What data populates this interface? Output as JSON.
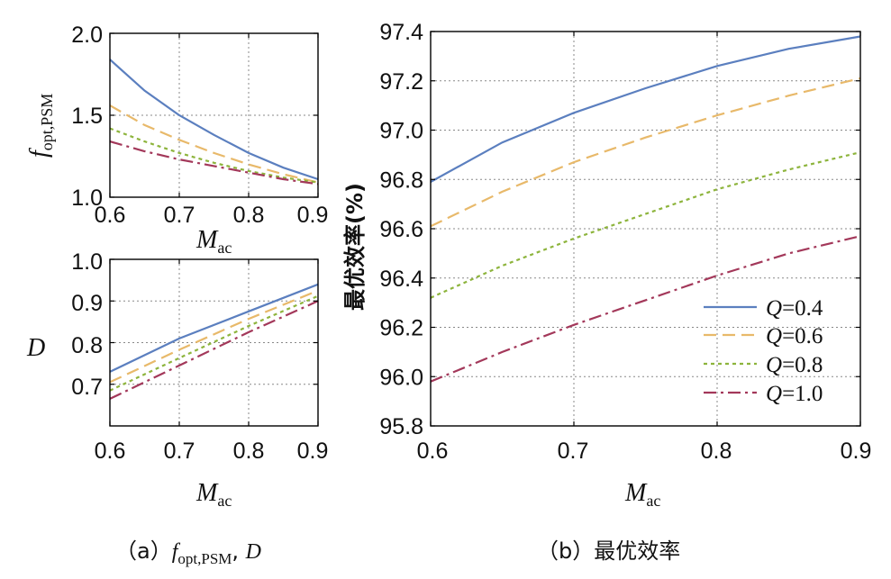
{
  "chart_data": [
    {
      "id": "a_top",
      "type": "line",
      "xlabel": "M",
      "xlabel_sub": "ac",
      "ylabel": "f",
      "ylabel_sub": "opt,PSM",
      "xlim": [
        0.6,
        0.9
      ],
      "ylim": [
        1.0,
        2.0
      ],
      "xticks": [
        "0.6",
        "0.7",
        "0.8",
        "0.9"
      ],
      "yticks": [
        "1.0",
        "1.5",
        "2.0"
      ],
      "x": [
        0.6,
        0.65,
        0.7,
        0.75,
        0.8,
        0.85,
        0.9
      ],
      "series": [
        {
          "name": "Q=0.4",
          "values": [
            1.84,
            1.65,
            1.5,
            1.38,
            1.27,
            1.18,
            1.11
          ]
        },
        {
          "name": "Q=0.6",
          "values": [
            1.56,
            1.44,
            1.35,
            1.27,
            1.2,
            1.14,
            1.09
          ]
        },
        {
          "name": "Q=0.8",
          "values": [
            1.42,
            1.34,
            1.27,
            1.21,
            1.16,
            1.12,
            1.09
          ]
        },
        {
          "name": "Q=1.0",
          "values": [
            1.34,
            1.28,
            1.23,
            1.19,
            1.15,
            1.11,
            1.08
          ]
        }
      ]
    },
    {
      "id": "a_bottom",
      "type": "line",
      "xlabel": "M",
      "xlabel_sub": "ac",
      "ylabel": "D",
      "xlim": [
        0.6,
        0.9
      ],
      "ylim": [
        0.6,
        1.0
      ],
      "xticks": [
        "0.6",
        "0.7",
        "0.8",
        "0.9"
      ],
      "yticks": [
        "0.7",
        "0.8",
        "0.9",
        "1.0"
      ],
      "x": [
        0.6,
        0.7,
        0.8,
        0.9
      ],
      "series": [
        {
          "name": "Q=0.4",
          "values": [
            0.73,
            0.81,
            0.875,
            0.94
          ]
        },
        {
          "name": "Q=0.6",
          "values": [
            0.705,
            0.783,
            0.857,
            0.925
          ]
        },
        {
          "name": "Q=0.8",
          "values": [
            0.685,
            0.763,
            0.84,
            0.912
          ]
        },
        {
          "name": "Q=1.0",
          "values": [
            0.665,
            0.745,
            0.825,
            0.9
          ]
        }
      ]
    },
    {
      "id": "b",
      "type": "line",
      "xlabel": "M",
      "xlabel_sub": "ac",
      "ylabel": "最优效率(%)",
      "xlim": [
        0.6,
        0.9
      ],
      "ylim": [
        95.8,
        97.4
      ],
      "xticks": [
        "0.6",
        "0.7",
        "0.8",
        "0.9"
      ],
      "yticks": [
        "95.8",
        "96.0",
        "96.2",
        "96.4",
        "96.6",
        "96.8",
        "97.0",
        "97.2",
        "97.4"
      ],
      "x": [
        0.6,
        0.65,
        0.7,
        0.75,
        0.8,
        0.85,
        0.9
      ],
      "series": [
        {
          "name": "Q=0.4",
          "values": [
            96.79,
            96.95,
            97.07,
            97.17,
            97.26,
            97.33,
            97.38
          ]
        },
        {
          "name": "Q=0.6",
          "values": [
            96.61,
            96.75,
            96.87,
            96.97,
            97.06,
            97.14,
            97.21
          ]
        },
        {
          "name": "Q=0.8",
          "values": [
            96.32,
            96.45,
            96.56,
            96.66,
            96.76,
            96.84,
            96.91
          ]
        },
        {
          "name": "Q=1.0",
          "values": [
            95.98,
            96.1,
            96.21,
            96.31,
            96.41,
            96.5,
            96.57
          ]
        }
      ],
      "legend": {
        "placement": "lower-right",
        "entries": [
          {
            "q": "Q",
            "rest": "=0.4"
          },
          {
            "q": "Q",
            "rest": "=0.6"
          },
          {
            "q": "Q",
            "rest": "=0.8"
          },
          {
            "q": "Q",
            "rest": "=1.0"
          }
        ]
      }
    }
  ],
  "styles": {
    "colors": [
      "#5b7fbf",
      "#e8b96a",
      "#8db43c",
      "#a3385a"
    ],
    "dashes": [
      "",
      "14 7",
      "4 4",
      "14 5 3 5"
    ]
  },
  "captions": {
    "a": {
      "prefix": "（a）",
      "f": "f",
      "sub": "opt,PSM",
      "sep": ", ",
      "d": "D"
    },
    "b": {
      "prefix": "（b）",
      "text": "最优效率"
    }
  }
}
